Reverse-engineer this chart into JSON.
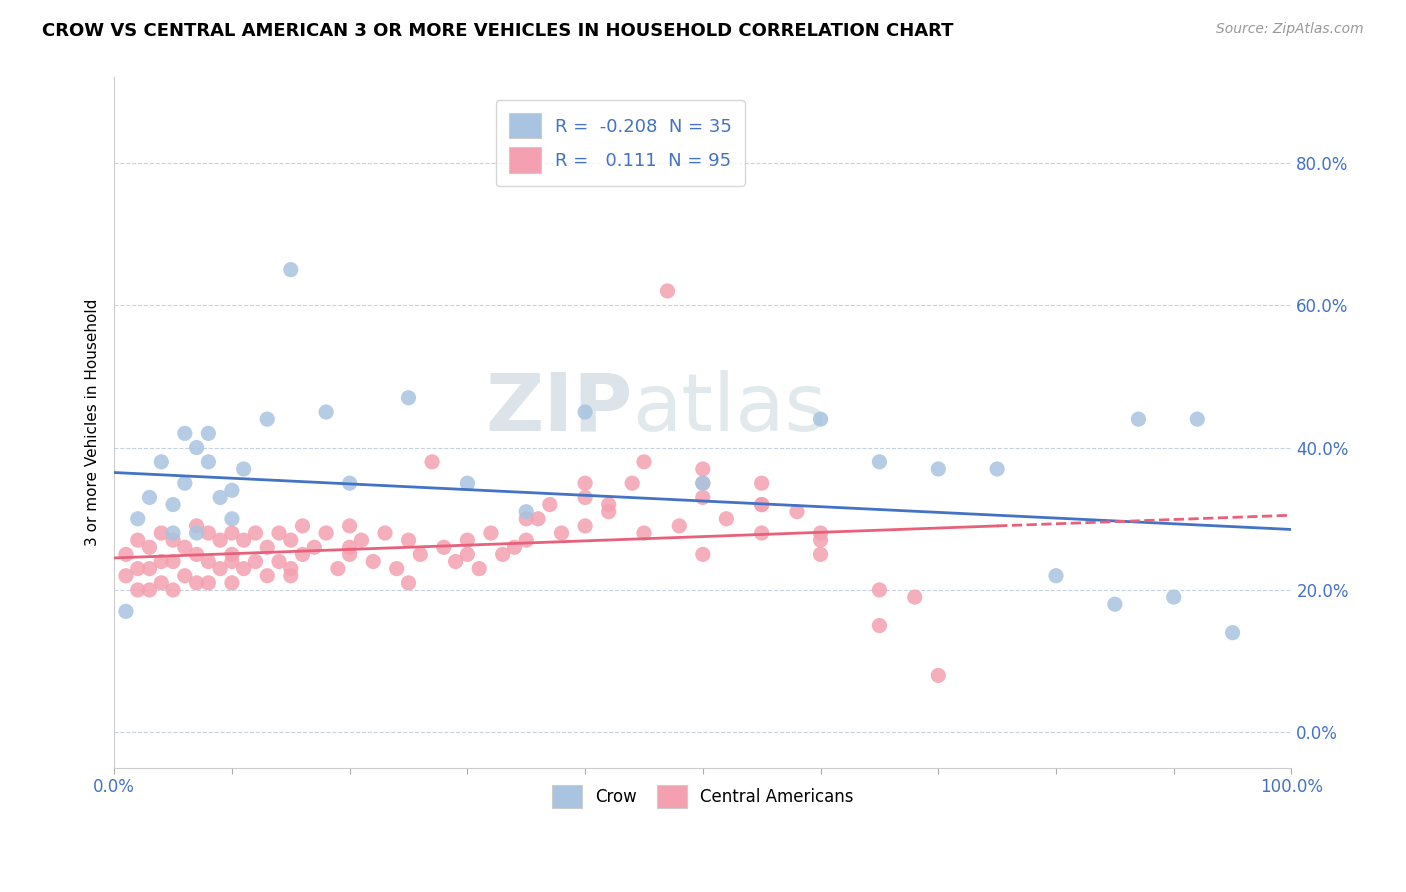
{
  "title": "CROW VS CENTRAL AMERICAN 3 OR MORE VEHICLES IN HOUSEHOLD CORRELATION CHART",
  "source": "Source: ZipAtlas.com",
  "ylabel": "3 or more Vehicles in Household",
  "xlim": [
    0.0,
    1.0
  ],
  "ylim": [
    -0.05,
    0.92
  ],
  "yticks": [
    0.0,
    0.2,
    0.4,
    0.6,
    0.8
  ],
  "ytick_labels": [
    "0.0%",
    "20.0%",
    "40.0%",
    "60.0%",
    "80.0%"
  ],
  "xticks": [
    0.0,
    0.1,
    0.2,
    0.3,
    0.4,
    0.5,
    0.6,
    0.7,
    0.8,
    0.9,
    1.0
  ],
  "xtick_labels": [
    "0.0%",
    "",
    "",
    "",
    "",
    "",
    "",
    "",
    "",
    "",
    "100.0%"
  ],
  "crow_R": -0.208,
  "crow_N": 35,
  "central_R": 0.111,
  "central_N": 95,
  "crow_color": "#a8c4e0",
  "central_color": "#f4a0b0",
  "crow_line_color": "#4472c4",
  "central_line_color": "#e8607a",
  "watermark_zip": "ZIP",
  "watermark_atlas": "atlas",
  "crow_scatter_x": [
    0.01,
    0.02,
    0.03,
    0.04,
    0.05,
    0.05,
    0.06,
    0.06,
    0.07,
    0.07,
    0.08,
    0.08,
    0.09,
    0.1,
    0.1,
    0.11,
    0.13,
    0.15,
    0.18,
    0.2,
    0.25,
    0.3,
    0.35,
    0.4,
    0.5,
    0.6,
    0.65,
    0.7,
    0.75,
    0.8,
    0.85,
    0.87,
    0.9,
    0.92,
    0.95
  ],
  "crow_scatter_y": [
    0.17,
    0.3,
    0.33,
    0.38,
    0.32,
    0.28,
    0.42,
    0.35,
    0.4,
    0.28,
    0.42,
    0.38,
    0.33,
    0.34,
    0.3,
    0.37,
    0.44,
    0.65,
    0.45,
    0.35,
    0.47,
    0.35,
    0.31,
    0.45,
    0.35,
    0.44,
    0.38,
    0.37,
    0.37,
    0.22,
    0.18,
    0.44,
    0.19,
    0.44,
    0.14
  ],
  "central_scatter_x": [
    0.01,
    0.01,
    0.02,
    0.02,
    0.02,
    0.03,
    0.03,
    0.03,
    0.04,
    0.04,
    0.04,
    0.05,
    0.05,
    0.05,
    0.06,
    0.06,
    0.07,
    0.07,
    0.07,
    0.08,
    0.08,
    0.08,
    0.09,
    0.09,
    0.1,
    0.1,
    0.1,
    0.11,
    0.11,
    0.12,
    0.12,
    0.13,
    0.13,
    0.14,
    0.14,
    0.15,
    0.15,
    0.16,
    0.16,
    0.17,
    0.18,
    0.19,
    0.2,
    0.2,
    0.21,
    0.22,
    0.23,
    0.24,
    0.25,
    0.26,
    0.27,
    0.28,
    0.29,
    0.3,
    0.31,
    0.32,
    0.33,
    0.34,
    0.35,
    0.36,
    0.37,
    0.38,
    0.4,
    0.4,
    0.42,
    0.44,
    0.45,
    0.47,
    0.48,
    0.5,
    0.5,
    0.52,
    0.55,
    0.55,
    0.58,
    0.6,
    0.4,
    0.42,
    0.45,
    0.5,
    0.55,
    0.6,
    0.65,
    0.65,
    0.68,
    0.7,
    0.5,
    0.55,
    0.6,
    0.35,
    0.3,
    0.25,
    0.2,
    0.15,
    0.1
  ],
  "central_scatter_y": [
    0.25,
    0.22,
    0.27,
    0.23,
    0.2,
    0.26,
    0.23,
    0.2,
    0.28,
    0.24,
    0.21,
    0.27,
    0.24,
    0.2,
    0.26,
    0.22,
    0.29,
    0.25,
    0.21,
    0.28,
    0.24,
    0.21,
    0.27,
    0.23,
    0.28,
    0.25,
    0.21,
    0.27,
    0.23,
    0.28,
    0.24,
    0.26,
    0.22,
    0.28,
    0.24,
    0.27,
    0.23,
    0.29,
    0.25,
    0.26,
    0.28,
    0.23,
    0.29,
    0.25,
    0.27,
    0.24,
    0.28,
    0.23,
    0.27,
    0.25,
    0.38,
    0.26,
    0.24,
    0.27,
    0.23,
    0.28,
    0.25,
    0.26,
    0.27,
    0.3,
    0.32,
    0.28,
    0.33,
    0.29,
    0.31,
    0.35,
    0.28,
    0.62,
    0.29,
    0.33,
    0.37,
    0.3,
    0.35,
    0.32,
    0.31,
    0.27,
    0.35,
    0.32,
    0.38,
    0.35,
    0.32,
    0.28,
    0.2,
    0.15,
    0.19,
    0.08,
    0.25,
    0.28,
    0.25,
    0.3,
    0.25,
    0.21,
    0.26,
    0.22,
    0.24
  ]
}
